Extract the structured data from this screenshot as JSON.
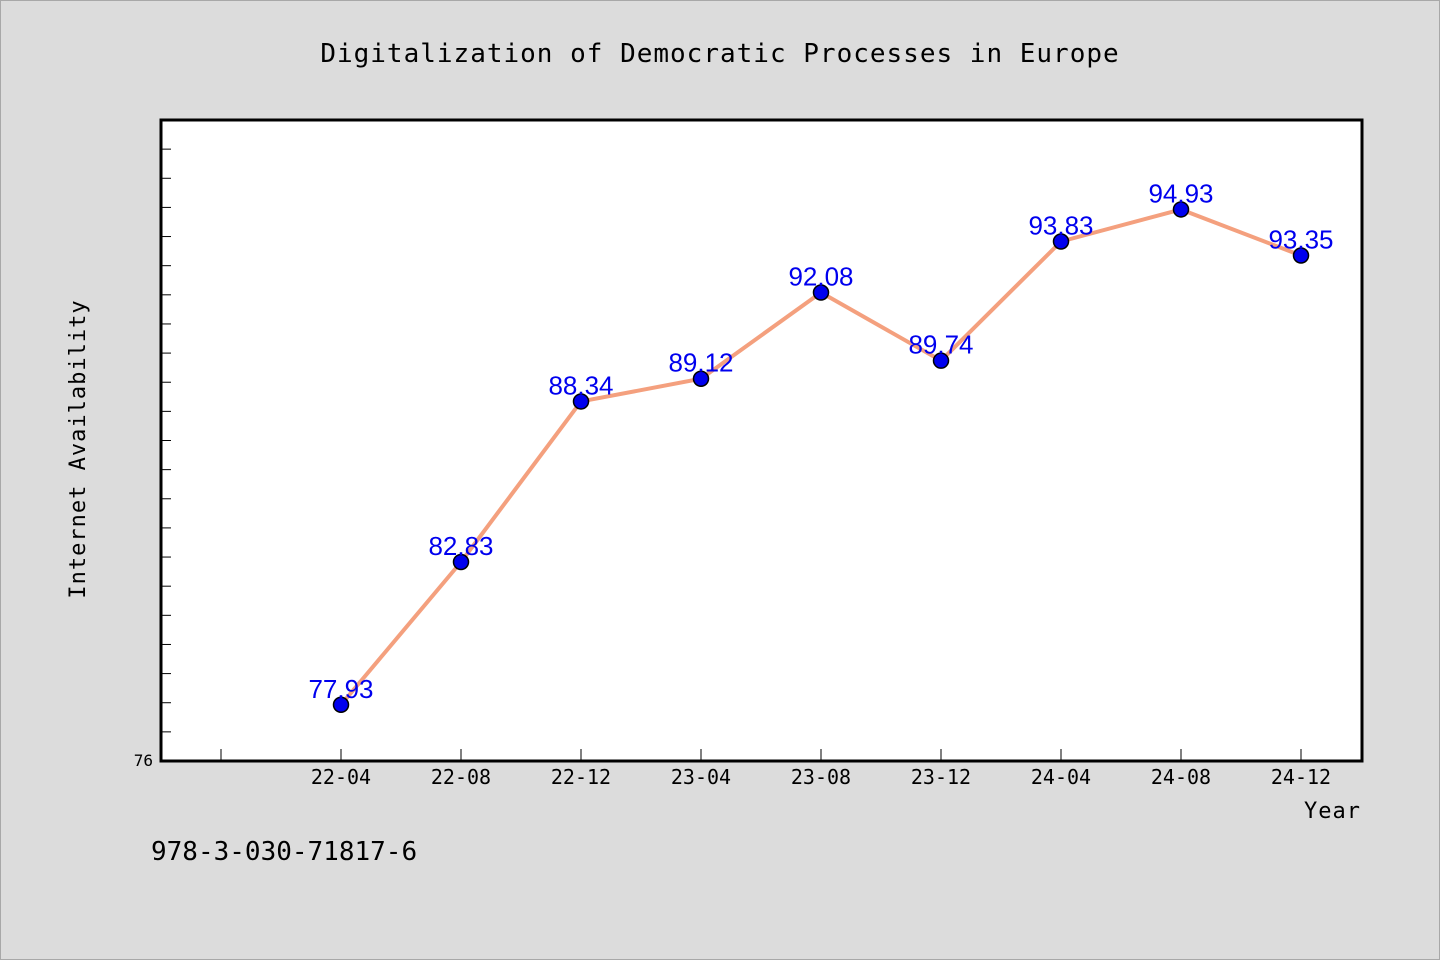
{
  "chart_data": {
    "type": "line",
    "title": "Digitalization of Democratic Processes in Europe",
    "xlabel": "Year",
    "ylabel": "Internet Availability",
    "categories": [
      "22-04",
      "22-08",
      "22-12",
      "23-04",
      "23-08",
      "23-12",
      "24-04",
      "24-08",
      "24-12"
    ],
    "series": [
      {
        "values": [
          77.93,
          82.83,
          88.34,
          89.12,
          92.08,
          89.74,
          93.83,
          94.93,
          93.35
        ]
      }
    ],
    "y_tick_labels": [
      "76"
    ],
    "ylim": [
      76,
      98
    ],
    "grid": false,
    "colors": {
      "line": "#f4a07e",
      "marker": "#0000ee",
      "label": "#0000ee",
      "plot_bg": "#ffffff",
      "page_bg": "#dcdcdc"
    }
  },
  "footer": {
    "isbn": "978-3-030-71817-6"
  }
}
